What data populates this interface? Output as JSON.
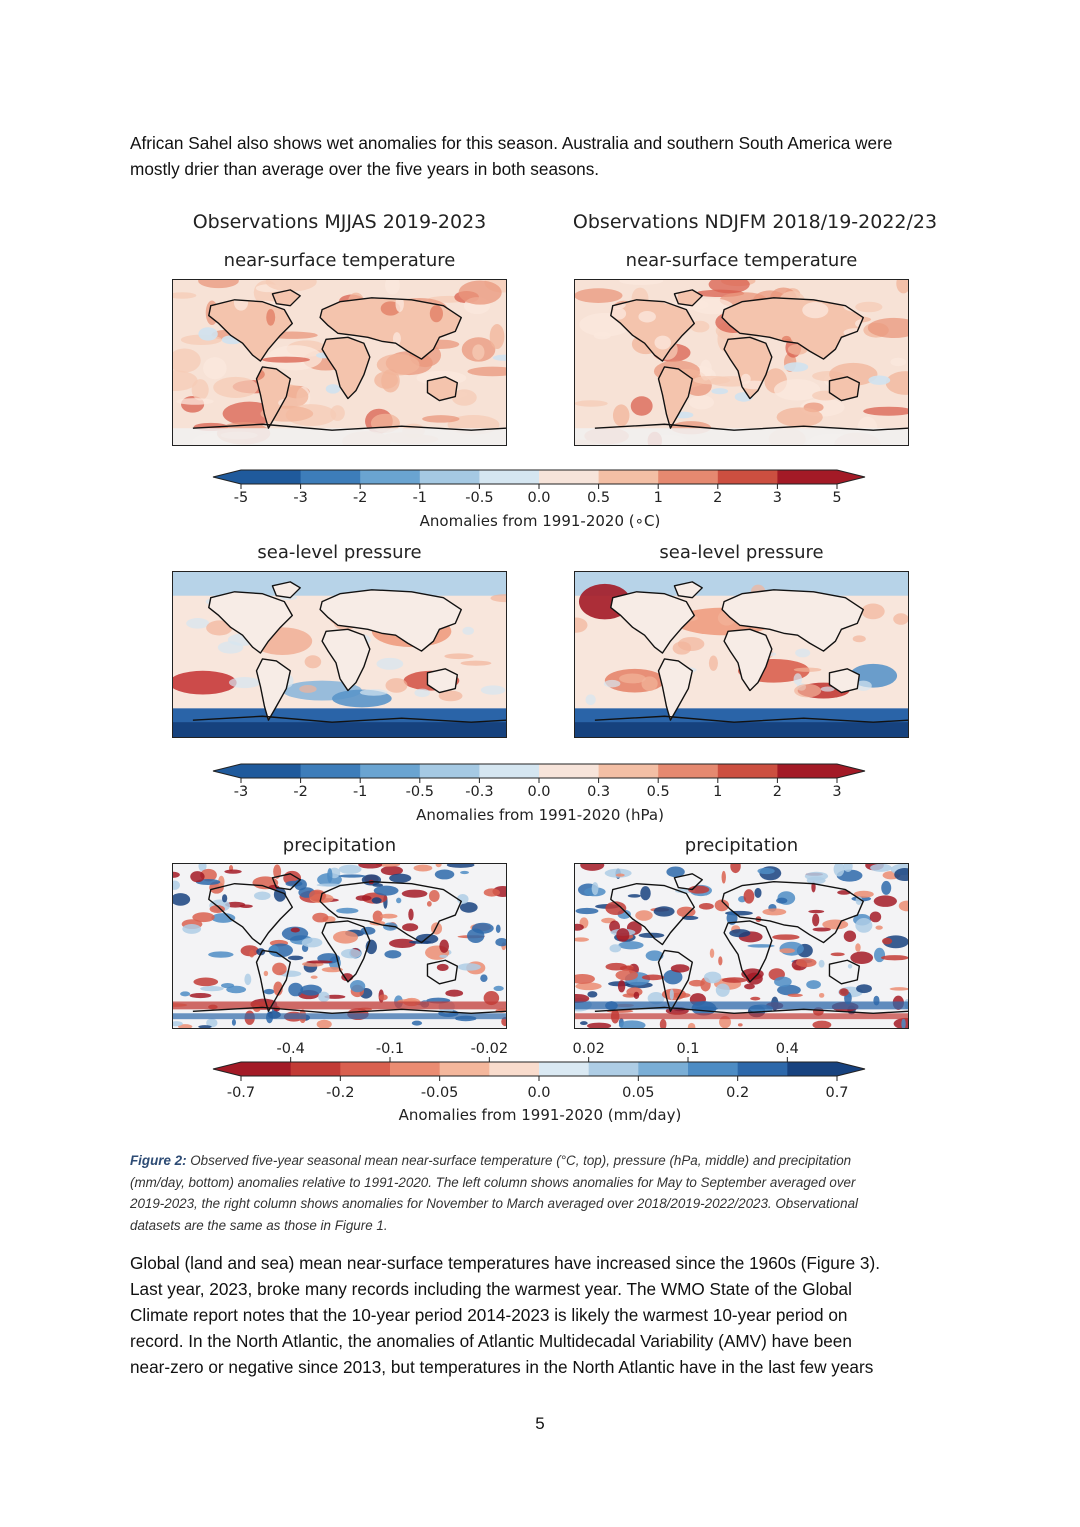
{
  "intro_lines": [
    "African Sahel also shows wet anomalies for this season. Australia and southern South America were",
    "mostly drier than average over the five years in both seasons."
  ],
  "figure": {
    "columns": [
      "Observations MJJAS 2019-2023",
      "Observations NDJFM 2018/19-2022/23"
    ],
    "rows": [
      {
        "panel_title": "near-surface temperature",
        "colorbar": {
          "label": "Anomalies from 1991-2020 (∘C)",
          "ticks": [
            "-5",
            "-3",
            "-2",
            "-1",
            "-0.5",
            "0.0",
            "0.5",
            "1",
            "2",
            "3",
            "5"
          ],
          "colors": [
            "#1f5a9c",
            "#3d7dba",
            "#6aa4d1",
            "#a5c9e3",
            "#d5e6f1",
            "#f7e4da",
            "#f3bfa5",
            "#e58970",
            "#cc4f40",
            "#a31a26"
          ]
        }
      },
      {
        "panel_title": "sea-level pressure",
        "colorbar": {
          "label": "Anomalies from 1991-2020 (hPa)",
          "ticks": [
            "-3",
            "-2",
            "-1",
            "-0.5",
            "-0.3",
            "0.0",
            "0.3",
            "0.5",
            "1",
            "2",
            "3"
          ],
          "colors": [
            "#1f5a9c",
            "#3d7dba",
            "#6aa4d1",
            "#a5c9e3",
            "#d5e6f1",
            "#f7e4da",
            "#f3bfa5",
            "#e58970",
            "#cc4f40",
            "#a31a26"
          ]
        }
      },
      {
        "panel_title": "precipitation",
        "colorbar": {
          "label": "Anomalies from 1991-2020 (mm/day)",
          "ticks_top": [
            "-0.4",
            "-0.1",
            "-0.02",
            "0.02",
            "0.1",
            "0.4"
          ],
          "ticks_bottom": [
            "-0.7",
            "-0.2",
            "-0.05",
            "0.0",
            "0.05",
            "0.2",
            "0.7"
          ],
          "colors": [
            "#a31a26",
            "#c23b36",
            "#d9604f",
            "#eb8c72",
            "#f4b79c",
            "#f9dccd",
            "#dae9f3",
            "#aecde5",
            "#7aaed6",
            "#4d8cc4",
            "#2d68aa",
            "#17427f"
          ]
        }
      }
    ]
  },
  "caption": {
    "label": "Figure 2:",
    "lines": [
      " Observed five-year seasonal mean near-surface temperature (°C, top), pressure (hPa, middle) and precipitation",
      "(mm/day, bottom) anomalies relative to 1991-2020. The left column shows anomalies for May to September averaged over",
      "2019-2023, the right column shows anomalies for November to March averaged over 2018/2019-2022/2023. Observational",
      "datasets are the same as those in Figure 1."
    ]
  },
  "body_lines": [
    "Global (land and sea) mean near-surface temperatures have increased since the 1960s (Figure 3).",
    "Last year, 2023, broke many records including the warmest year. The WMO State of the Global",
    "Climate report notes that the 10-year period 2014-2023 is likely the warmest 10-year period on",
    "record. In the North Atlantic, the anomalies of Atlantic Multidecadal Variability (AMV) have been",
    "near-zero or negative since 2013, but temperatures in the North Atlantic have in the last few years"
  ],
  "page_number": "5"
}
